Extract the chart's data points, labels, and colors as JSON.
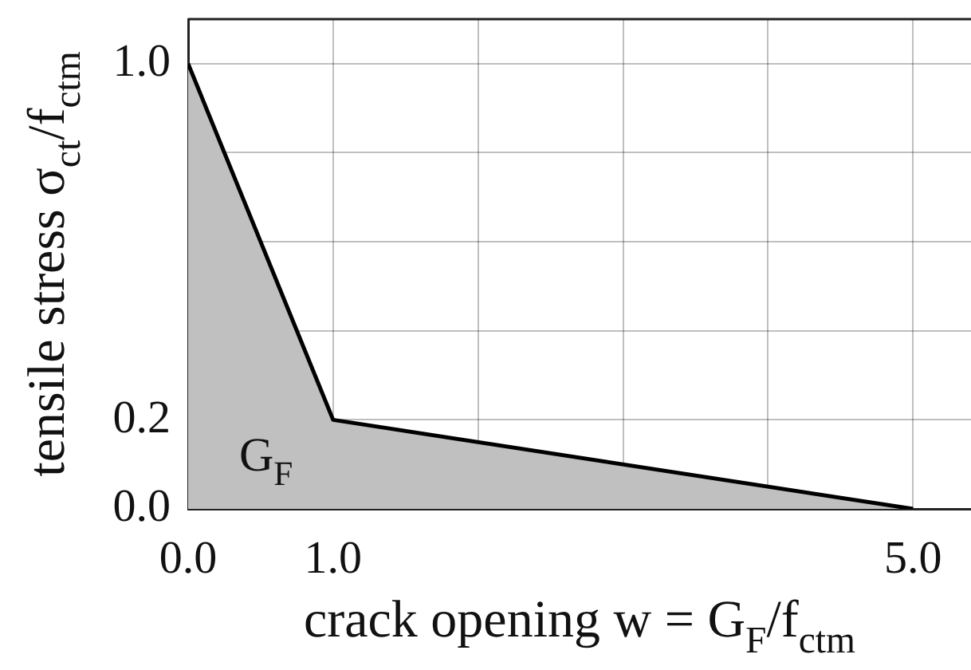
{
  "chart_data": {
    "type": "area",
    "xlabel": "crack opening w = G$_{F}$/f$_{ctm}$",
    "ylabel": "tensile stress σ$_{ct}$/f$_{ctm}$",
    "x": [
      0,
      1,
      5
    ],
    "values": [
      1.0,
      0.2,
      0.0
    ],
    "color": "#c0c0c0",
    "xlim": [
      0,
      5.4
    ],
    "ylim": [
      0,
      1.1
    ],
    "xticks": [
      {
        "value": 0,
        "label": "0.0"
      },
      {
        "value": 1,
        "label": "1.0"
      },
      {
        "value": 2,
        "label": null
      },
      {
        "value": 3,
        "label": null
      },
      {
        "value": 4,
        "label": null
      },
      {
        "value": 5,
        "label": "5.0"
      }
    ],
    "yticks": [
      {
        "value": 0,
        "label": "0.0"
      },
      {
        "value": 0.2,
        "label": "0.2"
      },
      {
        "value": 0.4,
        "label": null
      },
      {
        "value": 0.6,
        "label": null
      },
      {
        "value": 0.8,
        "label": null
      },
      {
        "value": 1,
        "label": "1.0"
      }
    ],
    "grid": true,
    "annotations": [
      "G$_{F}$"
    ]
  }
}
